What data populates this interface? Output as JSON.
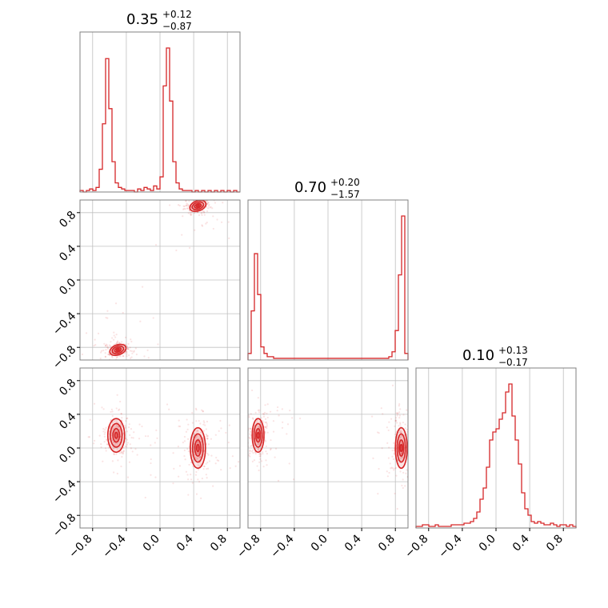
{
  "chart_data": {
    "type": "corner",
    "color": "#d62728",
    "params": [
      {
        "median": "0.35",
        "plus": "+0.12",
        "minus": "−0.87",
        "range": [
          -0.95,
          0.95
        ],
        "hist_edges_start": -0.95,
        "hist_bin": 0.038,
        "hist": [
          1,
          0,
          1,
          2,
          1,
          3,
          15,
          45,
          88,
          55,
          20,
          6,
          3,
          2,
          1,
          1,
          1,
          0,
          2,
          1,
          3,
          2,
          1,
          4,
          2,
          10,
          70,
          95,
          60,
          20,
          6,
          2,
          1,
          1,
          1,
          0,
          1,
          0,
          1,
          0,
          1,
          0,
          1,
          0,
          1,
          0,
          1,
          0,
          1,
          0
        ]
      },
      {
        "median": "0.70",
        "plus": "+0.20",
        "minus": "−1.57",
        "range": [
          -0.95,
          0.95
        ],
        "hist_edges_start": -0.95,
        "hist_bin": 0.038,
        "hist": [
          4,
          30,
          65,
          40,
          8,
          4,
          2,
          2,
          1,
          1,
          1,
          1,
          1,
          1,
          1,
          1,
          1,
          1,
          1,
          1,
          1,
          1,
          1,
          1,
          1,
          1,
          1,
          1,
          1,
          1,
          1,
          1,
          1,
          1,
          1,
          1,
          1,
          1,
          1,
          1,
          1,
          1,
          1,
          1,
          2,
          5,
          18,
          52,
          88,
          4
        ]
      },
      {
        "median": "0.10",
        "plus": "+0.13",
        "minus": "−0.17",
        "range": [
          -0.95,
          0.95
        ],
        "hist_edges_start": -0.95,
        "hist_bin": 0.038,
        "hist": [
          1,
          1,
          2,
          2,
          1,
          1,
          2,
          1,
          1,
          1,
          1,
          2,
          2,
          2,
          2,
          3,
          3,
          4,
          6,
          10,
          18,
          25,
          38,
          55,
          60,
          62,
          68,
          72,
          85,
          90,
          70,
          55,
          40,
          22,
          12,
          8,
          4,
          3,
          4,
          3,
          2,
          2,
          3,
          2,
          1,
          2,
          2,
          1,
          2,
          1
        ]
      }
    ],
    "ticks": [
      "−0.8",
      "−0.4",
      "0.0",
      "0.4",
      "0.8"
    ],
    "tick_values": [
      -0.8,
      -0.4,
      0.0,
      0.4,
      0.8
    ],
    "modes": {
      "p0p1": [
        {
          "x": -0.5,
          "y": -0.83,
          "sx": 0.05,
          "sy": 0.03,
          "rot": -20
        },
        {
          "x": 0.45,
          "y": 0.88,
          "sx": 0.05,
          "sy": 0.03,
          "rot": -20
        }
      ],
      "p0p2": [
        {
          "x": -0.52,
          "y": 0.15,
          "sx": 0.05,
          "sy": 0.1
        },
        {
          "x": 0.45,
          "y": 0.0,
          "sx": 0.045,
          "sy": 0.12
        }
      ],
      "p1p2": [
        {
          "x": -0.83,
          "y": 0.15,
          "sx": 0.035,
          "sy": 0.1
        },
        {
          "x": 0.87,
          "y": 0.0,
          "sx": 0.035,
          "sy": 0.12
        }
      ]
    }
  }
}
